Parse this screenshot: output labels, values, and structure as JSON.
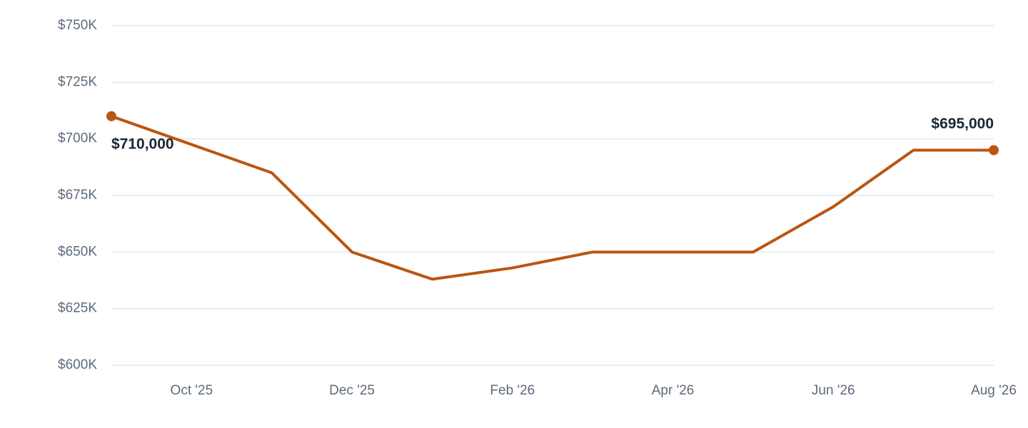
{
  "chart_data": {
    "type": "line",
    "categories": [
      null,
      "Oct '25",
      null,
      "Dec '25",
      null,
      "Feb '26",
      null,
      "Apr '26",
      null,
      "Jun '26",
      null,
      "Aug '26"
    ],
    "series": [
      {
        "color": "#bb5510",
        "values": [
          710000,
          697500,
          685000,
          650000,
          638000,
          643000,
          650000,
          650000,
          650000,
          670000,
          695000,
          695000
        ],
        "value_labels": [
          "$710,000",
          null,
          null,
          null,
          null,
          null,
          null,
          null,
          null,
          null,
          null,
          "$695,000"
        ]
      }
    ],
    "ylim": [
      600000,
      750000
    ],
    "yticks": [
      {
        "value": 600000,
        "label": "$600K"
      },
      {
        "value": 625000,
        "label": "$625K"
      },
      {
        "value": 650000,
        "label": "$650K"
      },
      {
        "value": 675000,
        "label": "$675K"
      },
      {
        "value": 700000,
        "label": "$700K"
      },
      {
        "value": 725000,
        "label": "$725K"
      },
      {
        "value": 750000,
        "label": "$750K"
      }
    ],
    "grid": true
  }
}
